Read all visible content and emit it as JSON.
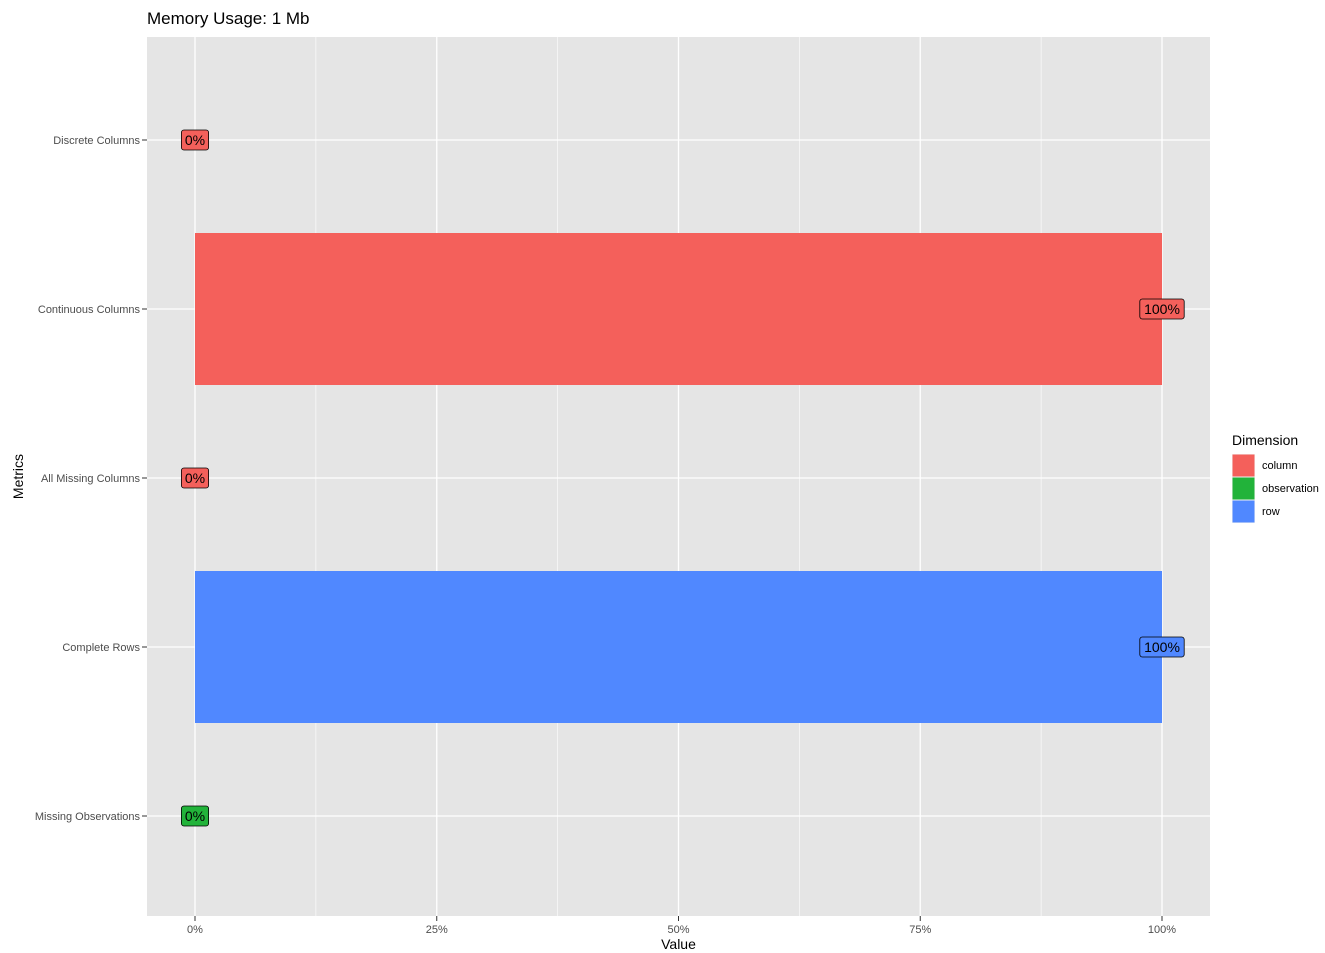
{
  "chart_data": {
    "type": "bar",
    "orientation": "horizontal",
    "title": "Memory Usage: 1 Mb",
    "xlabel": "Value",
    "ylabel": "Metrics",
    "xlim": [
      0,
      1
    ],
    "x_ticks": [
      0,
      0.25,
      0.5,
      0.75,
      1
    ],
    "x_tick_labels": [
      "0%",
      "25%",
      "50%",
      "75%",
      "100%"
    ],
    "grid": true,
    "legend": {
      "title": "Dimension",
      "placement": "right",
      "entries": [
        {
          "label": "column",
          "color": "#F8766D"
        },
        {
          "label": "observation",
          "color": "#00BA38"
        },
        {
          "label": "row",
          "color": "#619CFF"
        }
      ]
    },
    "categories": [
      "Discrete Columns",
      "Continuous Columns",
      "All Missing Columns",
      "Complete Rows",
      "Missing Observations"
    ],
    "bars": [
      {
        "metric": "Discrete Columns",
        "value": 0,
        "label": "0%",
        "dimension": "column"
      },
      {
        "metric": "Continuous Columns",
        "value": 1,
        "label": "100%",
        "dimension": "column"
      },
      {
        "metric": "All Missing Columns",
        "value": 0,
        "label": "0%",
        "dimension": "column"
      },
      {
        "metric": "Complete Rows",
        "value": 1,
        "label": "100%",
        "dimension": "row"
      },
      {
        "metric": "Missing Observations",
        "value": 0,
        "label": "0%",
        "dimension": "observation"
      }
    ]
  },
  "colors": {
    "panel_background": "#E5E5E5",
    "grid_line": "#FFFFFF",
    "axis_text": "#4D4D4D",
    "bar_column": "#F4605B",
    "bar_row": "#5088FF",
    "bar_observation": "#22B33A"
  }
}
